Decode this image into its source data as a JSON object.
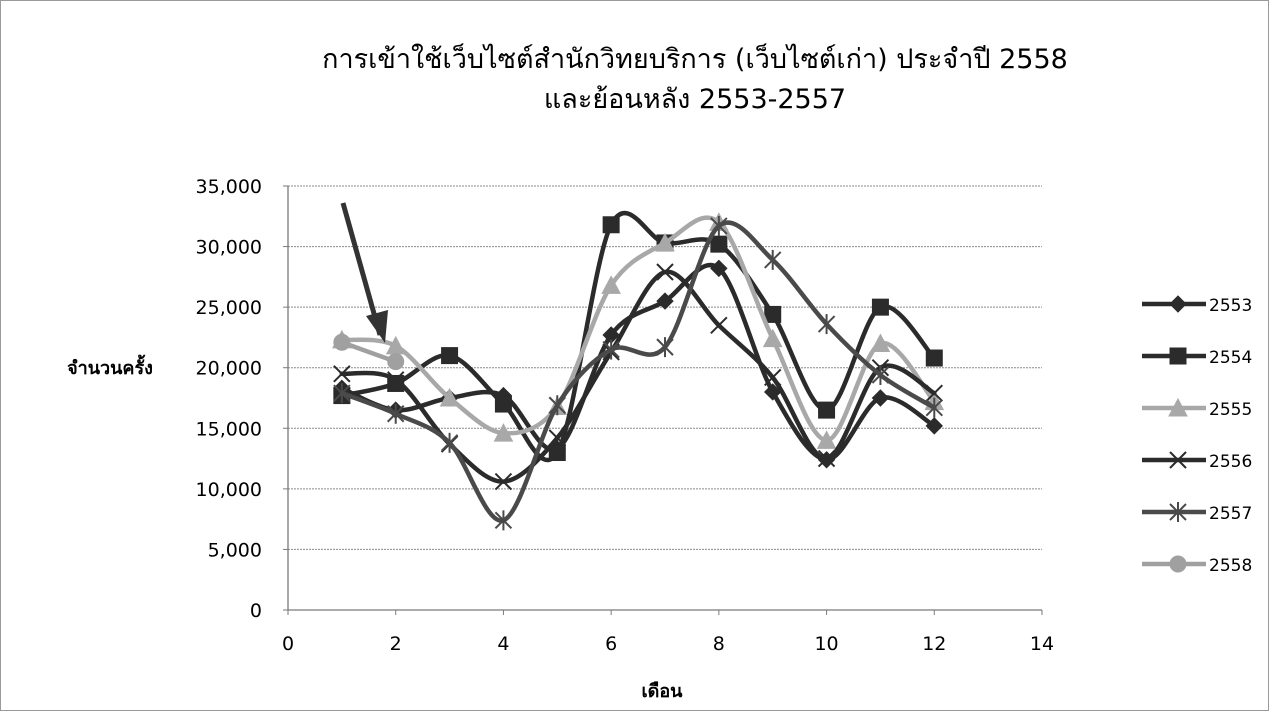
{
  "chart_data": {
    "type": "line",
    "title_line1": "การเข้าใช้เว็บไซต์สำนักวิทยบริการ (เว็บไซต์เก่า) ประจำปี 2558",
    "title_line2": "และย้อนหลัง 2553-2557",
    "xlabel": "เดือน",
    "ylabel": "จำนวนครั้ง",
    "xlim": [
      0,
      14
    ],
    "ylim": [
      0,
      35000
    ],
    "x_ticks": [
      0,
      2,
      4,
      6,
      8,
      10,
      12,
      14
    ],
    "y_ticks": [
      0,
      5000,
      10000,
      15000,
      20000,
      25000,
      30000,
      35000
    ],
    "y_tick_labels": [
      "0",
      "5,000",
      "10,000",
      "15,000",
      "20,000",
      "25,000",
      "30,000",
      "35,000"
    ],
    "grid": "horizontal",
    "legend_position": "right",
    "x": [
      1,
      2,
      3,
      4,
      5,
      6,
      7,
      8,
      9,
      10,
      11,
      12
    ],
    "series": [
      {
        "name": "2553",
        "marker": "diamond",
        "color": "#2b2b2b",
        "values": [
          18300,
          16500,
          17500,
          17700,
          13300,
          22700,
          25500,
          28200,
          18000,
          12400,
          17500,
          15200
        ]
      },
      {
        "name": "2554",
        "marker": "square",
        "color": "#2b2b2b",
        "values": [
          17700,
          18700,
          21000,
          17000,
          13000,
          31800,
          30300,
          30200,
          24400,
          16500,
          25000,
          20800
        ]
      },
      {
        "name": "2555",
        "marker": "triangle",
        "color": "#a8a8a8",
        "values": [
          22300,
          21800,
          17500,
          14600,
          16800,
          26800,
          30300,
          32000,
          22400,
          14000,
          22000,
          17200
        ]
      },
      {
        "name": "2556",
        "marker": "x",
        "color": "#2b2b2b",
        "values": [
          19500,
          19000,
          13700,
          10600,
          14200,
          21300,
          27900,
          23500,
          19200,
          12500,
          20000,
          17900
        ]
      },
      {
        "name": "2557",
        "marker": "star",
        "color": "#4a4a4a",
        "values": [
          17900,
          16200,
          13800,
          7400,
          16900,
          21500,
          21700,
          31700,
          28900,
          23600,
          19400,
          16700
        ]
      },
      {
        "name": "2558",
        "marker": "circle",
        "color": "#a0a0a0",
        "values": [
          22100,
          20500,
          null,
          null,
          null,
          null,
          null,
          null,
          null,
          null,
          null,
          null
        ]
      }
    ]
  }
}
